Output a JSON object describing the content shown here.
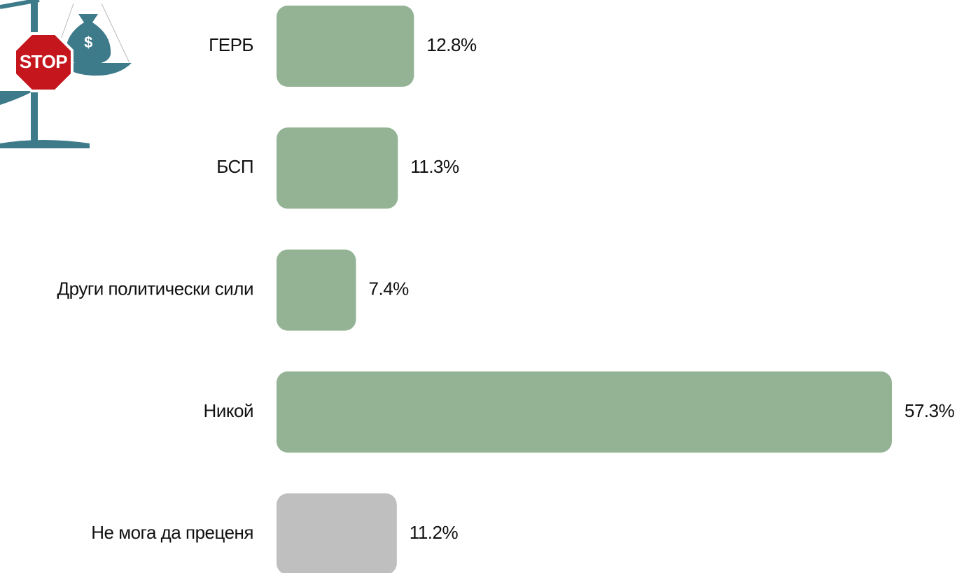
{
  "chart_data": {
    "type": "hbar",
    "categories": [
      "ГЕРБ",
      "БСП",
      "Други политически сили",
      "Никой",
      "Не мога да преценя"
    ],
    "values": [
      12.8,
      11.3,
      7.4,
      57.3,
      11.2
    ],
    "value_labels": [
      "12.8%",
      "11.3%",
      "7.4%",
      "57.3%",
      "11.2%"
    ],
    "colors": [
      "#93b394",
      "#93b394",
      "#93b394",
      "#93b394",
      "#bfbfbf"
    ]
  },
  "illustration": {
    "sign": "STOP",
    "bag": "$"
  }
}
